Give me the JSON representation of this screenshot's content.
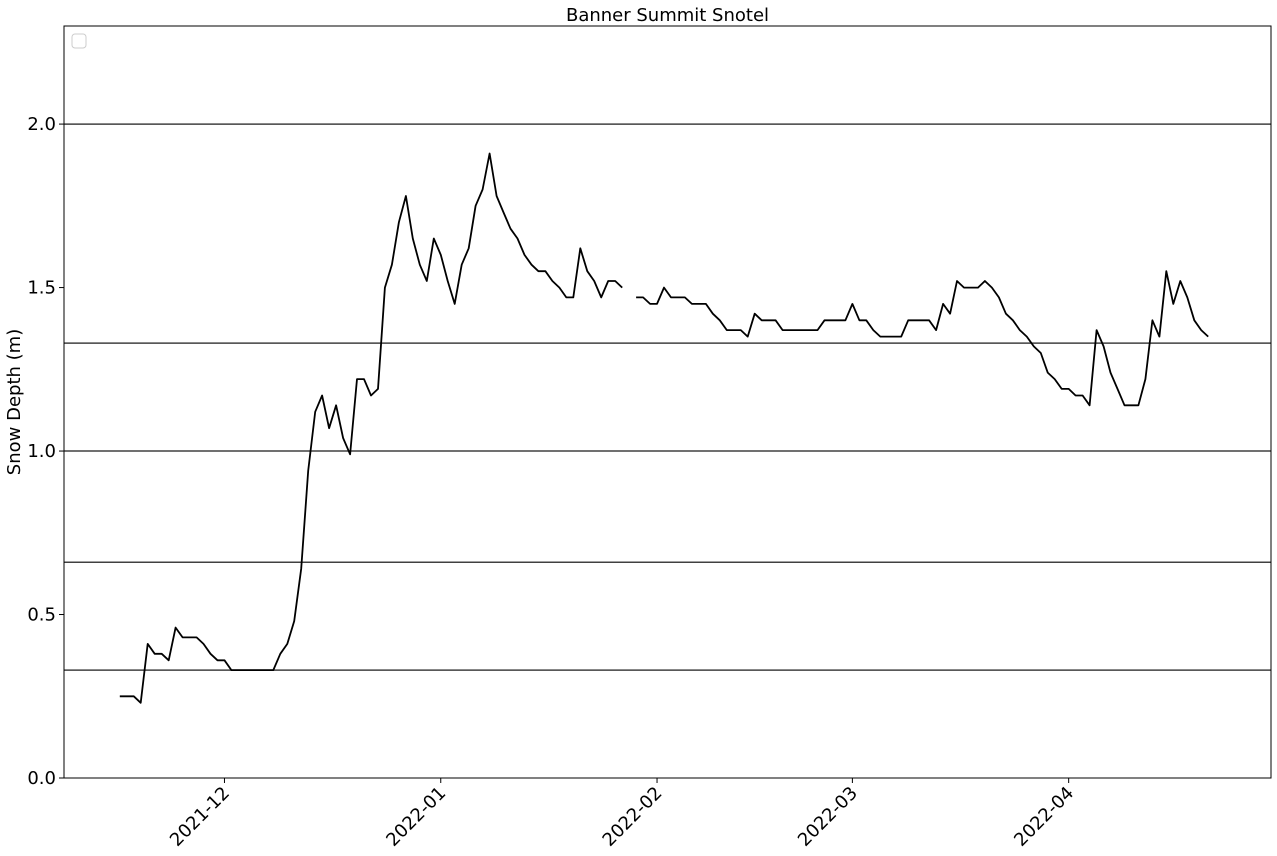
{
  "chart_data": {
    "type": "line",
    "title": "Banner Summit Snotel",
    "xlabel": "",
    "ylabel": "Snow Depth (m)",
    "xlim": [
      "2021-11-08",
      "2022-04-30"
    ],
    "ylim": [
      0,
      2.3
    ],
    "y_ticks": [
      0.0,
      0.5,
      1.0,
      1.5,
      2.0
    ],
    "y_tick_labels": [
      "0.0",
      "0.5",
      "1.0",
      "1.5",
      "2.0"
    ],
    "x_ticks": [
      "2021-12-01",
      "2022-01-01",
      "2022-02-01",
      "2022-03-01",
      "2022-04-01"
    ],
    "x_tick_labels": [
      "2021-12",
      "2022-01",
      "2022-02",
      "2022-03",
      "2022-04"
    ],
    "hlines": [
      0.33,
      0.66,
      1.0,
      1.33,
      2.0
    ],
    "legend": "top-left, empty",
    "grid": false,
    "series": [
      {
        "color": "#000000",
        "x": [
          "2021-11-16",
          "2021-11-17",
          "2021-11-18",
          "2021-11-19",
          "2021-11-20",
          "2021-11-21",
          "2021-11-22",
          "2021-11-23",
          "2021-11-24",
          "2021-11-25",
          "2021-11-26",
          "2021-11-27",
          "2021-11-28",
          "2021-11-29",
          "2021-11-30",
          "2021-12-01",
          "2021-12-02",
          "2021-12-03",
          "2021-12-04",
          "2021-12-05",
          "2021-12-06",
          "2021-12-07",
          "2021-12-08",
          "2021-12-09",
          "2021-12-10",
          "2021-12-11",
          "2021-12-12",
          "2021-12-13",
          "2021-12-14",
          "2021-12-15",
          "2021-12-16",
          "2021-12-17",
          "2021-12-18",
          "2021-12-19",
          "2021-12-20",
          "2021-12-21",
          "2021-12-22",
          "2021-12-23",
          "2021-12-24",
          "2021-12-25",
          "2021-12-26",
          "2021-12-27",
          "2021-12-28",
          "2021-12-29",
          "2021-12-30",
          "2021-12-31",
          "2022-01-01",
          "2022-01-02",
          "2022-01-03",
          "2022-01-04",
          "2022-01-05",
          "2022-01-06",
          "2022-01-07",
          "2022-01-08",
          "2022-01-09",
          "2022-01-10",
          "2022-01-11",
          "2022-01-12",
          "2022-01-13",
          "2022-01-14",
          "2022-01-15",
          "2022-01-16",
          "2022-01-17",
          "2022-01-18",
          "2022-01-19",
          "2022-01-20",
          "2022-01-21",
          "2022-01-22",
          "2022-01-23",
          "2022-01-24",
          "2022-01-25",
          "2022-01-26",
          "2022-01-27"
        ],
        "y": [
          0.25,
          0.25,
          0.25,
          0.23,
          0.41,
          0.38,
          0.38,
          0.36,
          0.46,
          0.43,
          0.43,
          0.43,
          0.41,
          0.38,
          0.36,
          0.36,
          0.33,
          0.33,
          0.33,
          0.33,
          0.33,
          0.33,
          0.33,
          0.38,
          0.41,
          0.48,
          0.64,
          0.94,
          1.12,
          1.17,
          1.07,
          1.14,
          1.04,
          0.99,
          1.22,
          1.22,
          1.17,
          1.19,
          1.5,
          1.57,
          1.7,
          1.78,
          1.65,
          1.57,
          1.52,
          1.65,
          1.6,
          1.52,
          1.45,
          1.57,
          1.62,
          1.75,
          1.8,
          1.91,
          1.78,
          1.73,
          1.68,
          1.65,
          1.6,
          1.57,
          1.55,
          1.55,
          1.52,
          1.5,
          1.47,
          1.47,
          1.62,
          1.55,
          1.52,
          1.47,
          1.52,
          1.52,
          1.5
        ]
      },
      {
        "color": "#000000",
        "x": [
          "2022-01-29",
          "2022-01-30",
          "2022-01-31",
          "2022-02-01",
          "2022-02-02",
          "2022-02-03",
          "2022-02-04",
          "2022-02-05",
          "2022-02-06",
          "2022-02-07",
          "2022-02-08",
          "2022-02-09",
          "2022-02-10",
          "2022-02-11",
          "2022-02-12",
          "2022-02-13",
          "2022-02-14",
          "2022-02-15",
          "2022-02-16",
          "2022-02-17",
          "2022-02-18",
          "2022-02-19",
          "2022-02-20",
          "2022-02-21",
          "2022-02-22",
          "2022-02-23",
          "2022-02-24",
          "2022-02-25",
          "2022-02-26",
          "2022-02-27",
          "2022-02-28",
          "2022-03-01",
          "2022-03-02",
          "2022-03-03",
          "2022-03-04",
          "2022-03-05",
          "2022-03-06",
          "2022-03-07",
          "2022-03-08",
          "2022-03-09",
          "2022-03-10",
          "2022-03-11",
          "2022-03-12",
          "2022-03-13",
          "2022-03-14",
          "2022-03-15",
          "2022-03-16",
          "2022-03-17",
          "2022-03-18",
          "2022-03-19",
          "2022-03-20",
          "2022-03-21",
          "2022-03-22",
          "2022-03-23",
          "2022-03-24",
          "2022-03-25",
          "2022-03-26",
          "2022-03-27",
          "2022-03-28",
          "2022-03-29",
          "2022-03-30",
          "2022-03-31",
          "2022-04-01",
          "2022-04-02",
          "2022-04-03",
          "2022-04-04",
          "2022-04-05",
          "2022-04-06",
          "2022-04-07",
          "2022-04-08",
          "2022-04-09",
          "2022-04-10",
          "2022-04-11",
          "2022-04-12",
          "2022-04-13",
          "2022-04-14",
          "2022-04-15",
          "2022-04-16",
          "2022-04-17",
          "2022-04-18",
          "2022-04-19",
          "2022-04-20",
          "2022-04-21"
        ],
        "y": [
          1.47,
          1.47,
          1.45,
          1.45,
          1.5,
          1.47,
          1.47,
          1.47,
          1.45,
          1.45,
          1.45,
          1.42,
          1.4,
          1.37,
          1.37,
          1.37,
          1.35,
          1.42,
          1.4,
          1.4,
          1.4,
          1.37,
          1.37,
          1.37,
          1.37,
          1.37,
          1.37,
          1.4,
          1.4,
          1.4,
          1.4,
          1.45,
          1.4,
          1.4,
          1.37,
          1.35,
          1.35,
          1.35,
          1.35,
          1.4,
          1.4,
          1.4,
          1.4,
          1.37,
          1.45,
          1.42,
          1.52,
          1.5,
          1.5,
          1.5,
          1.52,
          1.5,
          1.47,
          1.42,
          1.4,
          1.37,
          1.35,
          1.32,
          1.3,
          1.24,
          1.22,
          1.19,
          1.19,
          1.17,
          1.17,
          1.14,
          1.37,
          1.32,
          1.24,
          1.19,
          1.14,
          1.14,
          1.14,
          1.22,
          1.4,
          1.35,
          1.55,
          1.45,
          1.52,
          1.47,
          1.4,
          1.37,
          1.35
        ]
      }
    ]
  }
}
